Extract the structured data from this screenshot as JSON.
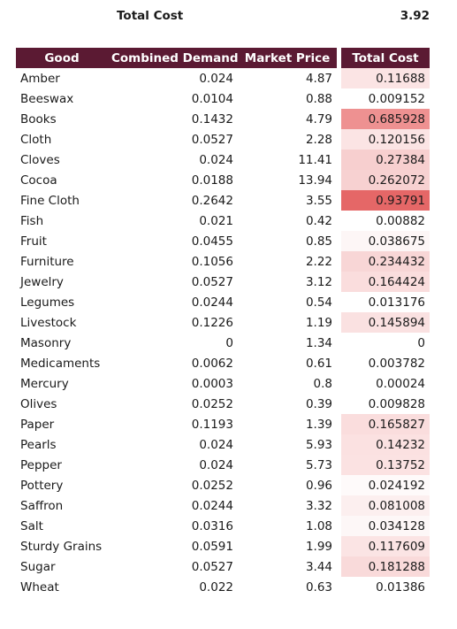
{
  "summary": {
    "label": "Total Cost",
    "value": "3.92"
  },
  "table": {
    "headers": [
      "Good",
      "Combined Demand",
      "Market Price",
      "Total Cost"
    ],
    "rows": [
      {
        "good": "Amber",
        "demand": "0.024",
        "price": "4.87",
        "cost": "0.11688",
        "shade": "#fbe4e4"
      },
      {
        "good": "Beeswax",
        "demand": "0.0104",
        "price": "0.88",
        "cost": "0.009152",
        "shade": "#ffffff"
      },
      {
        "good": "Books",
        "demand": "0.1432",
        "price": "4.79",
        "cost": "0.685928",
        "shade": "#ee9191"
      },
      {
        "good": "Cloth",
        "demand": "0.0527",
        "price": "2.28",
        "cost": "0.120156",
        "shade": "#fbe4e4"
      },
      {
        "good": "Cloves",
        "demand": "0.024",
        "price": "11.41",
        "cost": "0.27384",
        "shade": "#f7cfcf"
      },
      {
        "good": "Cocoa",
        "demand": "0.0188",
        "price": "13.94",
        "cost": "0.262072",
        "shade": "#f7d1d1"
      },
      {
        "good": "Fine Cloth",
        "demand": "0.2642",
        "price": "3.55",
        "cost": "0.93791",
        "shade": "#e56767"
      },
      {
        "good": "Fish",
        "demand": "0.021",
        "price": "0.42",
        "cost": "0.00882",
        "shade": "#ffffff"
      },
      {
        "good": "Fruit",
        "demand": "0.0455",
        "price": "0.85",
        "cost": "0.038675",
        "shade": "#fdf6f6"
      },
      {
        "good": "Furniture",
        "demand": "0.1056",
        "price": "2.22",
        "cost": "0.234432",
        "shade": "#f8d6d6"
      },
      {
        "good": "Jewelry",
        "demand": "0.0527",
        "price": "3.12",
        "cost": "0.164424",
        "shade": "#fadddd"
      },
      {
        "good": "Legumes",
        "demand": "0.0244",
        "price": "0.54",
        "cost": "0.013176",
        "shade": "#ffffff"
      },
      {
        "good": "Livestock",
        "demand": "0.1226",
        "price": "1.19",
        "cost": "0.145894",
        "shade": "#fae1e1"
      },
      {
        "good": "Masonry",
        "demand": "0",
        "price": "1.34",
        "cost": "0",
        "shade": "#ffffff"
      },
      {
        "good": "Medicaments",
        "demand": "0.0062",
        "price": "0.61",
        "cost": "0.003782",
        "shade": "#ffffff"
      },
      {
        "good": "Mercury",
        "demand": "0.0003",
        "price": "0.8",
        "cost": "0.00024",
        "shade": "#ffffff"
      },
      {
        "good": "Olives",
        "demand": "0.0252",
        "price": "0.39",
        "cost": "0.009828",
        "shade": "#ffffff"
      },
      {
        "good": "Paper",
        "demand": "0.1193",
        "price": "1.39",
        "cost": "0.165827",
        "shade": "#fadddd"
      },
      {
        "good": "Pearls",
        "demand": "0.024",
        "price": "5.93",
        "cost": "0.14232",
        "shade": "#fbe1e1"
      },
      {
        "good": "Pepper",
        "demand": "0.024",
        "price": "5.73",
        "cost": "0.13752",
        "shade": "#fbe2e2"
      },
      {
        "good": "Pottery",
        "demand": "0.0252",
        "price": "0.96",
        "cost": "0.024192",
        "shade": "#fefafa"
      },
      {
        "good": "Saffron",
        "demand": "0.0244",
        "price": "3.32",
        "cost": "0.081008",
        "shade": "#fcefef"
      },
      {
        "good": "Salt",
        "demand": "0.0316",
        "price": "1.08",
        "cost": "0.034128",
        "shade": "#fdf7f7"
      },
      {
        "good": "Sturdy Grains",
        "demand": "0.0591",
        "price": "1.99",
        "cost": "0.117609",
        "shade": "#fbe4e4"
      },
      {
        "good": "Sugar",
        "demand": "0.0527",
        "price": "3.44",
        "cost": "0.181288",
        "shade": "#f9dada"
      },
      {
        "good": "Wheat",
        "demand": "0.022",
        "price": "0.63",
        "cost": "0.01386",
        "shade": "#ffffff"
      }
    ]
  }
}
